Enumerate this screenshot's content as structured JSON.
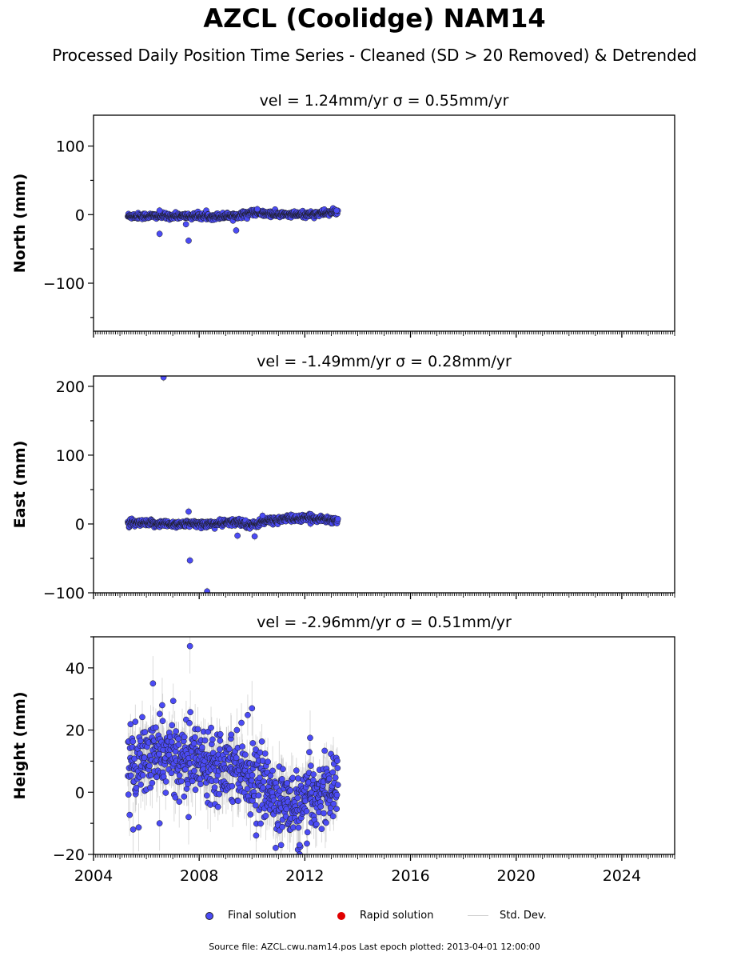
{
  "header": {
    "title": "AZCL (Coolidge) NAM14",
    "subtitle": "Processed Daily Position Time Series - Cleaned (SD > 20 Removed) & Detrended"
  },
  "colors": {
    "final": "#4b4bf5",
    "rapid": "#e00000",
    "stddev": "#9a9a9a",
    "marker_edge": "#1a1a1a"
  },
  "legend": {
    "final": "Final solution",
    "rapid": "Rapid solution",
    "stddev": "Std. Dev."
  },
  "footer": {
    "source": "Source file: AZCL.cwu.nam14.pos  Last epoch plotted: 2013-04-01 12:00:00"
  },
  "chart_data": [
    {
      "type": "scatter",
      "panel": "north",
      "title": "vel = 1.24mm/yr   σ = 0.55mm/yr",
      "ylabel": "North (mm)",
      "xlim": [
        2004.0,
        2026.0
      ],
      "ylim": [
        -170,
        145
      ],
      "yticks": [
        -100,
        0,
        100
      ],
      "xticks": [
        2004,
        2008,
        2012,
        2016,
        2020,
        2024
      ],
      "grid": false,
      "series": [
        {
          "name": "Final solution",
          "trend": [
            [
              2005.3,
              -2.0
            ],
            [
              2007.0,
              -2.0
            ],
            [
              2008.5,
              -2.5
            ],
            [
              2009.5,
              -1.0
            ],
            [
              2010.0,
              3.0
            ],
            [
              2011.0,
              0.0
            ],
            [
              2012.0,
              0.0
            ],
            [
              2013.25,
              4.0
            ]
          ],
          "scatter": 2.2,
          "sd": 3.5,
          "outliers": [
            [
              2006.5,
              -28.0
            ],
            [
              2007.6,
              -38.0
            ],
            [
              2007.5,
              -14.0
            ],
            [
              2009.4,
              -23.0
            ],
            [
              2006.5,
              6.0
            ],
            [
              2010.2,
              8.0
            ],
            [
              2013.2,
              6.0
            ]
          ]
        }
      ]
    },
    {
      "type": "scatter",
      "panel": "east",
      "title": "vel = -1.49mm/yr   σ = 0.28mm/yr",
      "ylabel": "East (mm)",
      "xlim": [
        2004.0,
        2026.0
      ],
      "ylim": [
        -100,
        215
      ],
      "yticks": [
        -100,
        0,
        100,
        200
      ],
      "xticks": [
        2004,
        2008,
        2012,
        2016,
        2020,
        2024
      ],
      "grid": false,
      "series": [
        {
          "name": "Final solution",
          "trend": [
            [
              2005.3,
              1.0
            ],
            [
              2007.0,
              0.0
            ],
            [
              2008.5,
              0.0
            ],
            [
              2009.5,
              3.0
            ],
            [
              2010.0,
              -2.0
            ],
            [
              2010.5,
              4.0
            ],
            [
              2011.5,
              8.0
            ],
            [
              2012.5,
              8.0
            ],
            [
              2013.25,
              5.0
            ]
          ],
          "scatter": 2.5,
          "sd": 4.0,
          "outliers": [
            [
              2006.65,
              213.0
            ],
            [
              2007.65,
              -53.0
            ],
            [
              2008.3,
              -98.0
            ],
            [
              2007.6,
              18.0
            ],
            [
              2009.45,
              -17.0
            ],
            [
              2010.1,
              -18.0
            ],
            [
              2010.4,
              12.0
            ]
          ]
        }
      ]
    },
    {
      "type": "scatter",
      "panel": "height",
      "title": "vel = -2.96mm/yr   σ = 0.51mm/yr",
      "ylabel": "Height (mm)",
      "xlim": [
        2004.0,
        2026.0
      ],
      "ylim": [
        -20,
        50
      ],
      "yticks": [
        -20,
        0,
        20,
        40
      ],
      "xticks": [
        2004,
        2008,
        2012,
        2016,
        2020,
        2024
      ],
      "xticklabels": [
        "2004",
        "2008",
        "2012",
        "2016",
        "2020",
        "2024"
      ],
      "grid": false,
      "series": [
        {
          "name": "Final solution",
          "trend": [
            [
              2005.3,
              8.0
            ],
            [
              2006.5,
              12.0
            ],
            [
              2007.5,
              11.0
            ],
            [
              2008.5,
              10.0
            ],
            [
              2009.5,
              9.0
            ],
            [
              2010.2,
              3.0
            ],
            [
              2011.0,
              -2.0
            ],
            [
              2011.8,
              -6.0
            ],
            [
              2012.5,
              0.0
            ],
            [
              2013.25,
              2.0
            ]
          ],
          "scatter": 5.5,
          "sd": 5.5,
          "outliers": [
            [
              2007.65,
              47.0
            ],
            [
              2006.25,
              35.0
            ],
            [
              2010.0,
              27.0
            ],
            [
              2006.6,
              28.0
            ],
            [
              2005.5,
              -12.0
            ],
            [
              2006.5,
              -10.0
            ],
            [
              2011.8,
              -17.0
            ],
            [
              2011.1,
              -17.0
            ],
            [
              2012.2,
              17.5
            ],
            [
              2007.6,
              -8.0
            ]
          ]
        }
      ]
    }
  ]
}
